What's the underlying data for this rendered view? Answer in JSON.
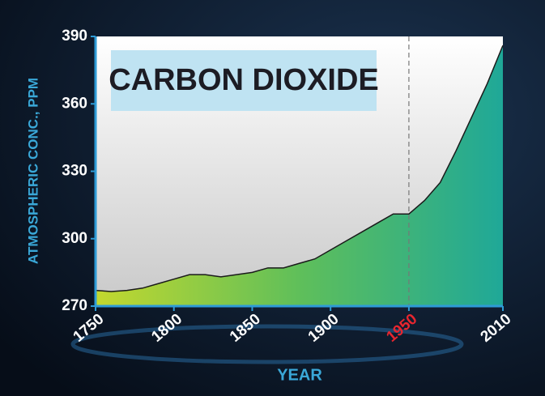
{
  "chart_data": {
    "type": "area",
    "title": "CARBON DIOXIDE",
    "y_label": "ATMOSPHERIC CONC., PPM",
    "x_label": "YEAR",
    "x": [
      1750,
      1760,
      1770,
      1780,
      1790,
      1800,
      1810,
      1820,
      1830,
      1840,
      1850,
      1860,
      1870,
      1880,
      1890,
      1900,
      1910,
      1920,
      1930,
      1940,
      1950,
      1960,
      1970,
      1980,
      1990,
      2000,
      2010
    ],
    "values": [
      277,
      276.5,
      277,
      278,
      280,
      282,
      284,
      284,
      283,
      284,
      285,
      287,
      287,
      289,
      291,
      295,
      299,
      303,
      307,
      311,
      311,
      317,
      325,
      339,
      354,
      369,
      386
    ],
    "xlim": [
      1750,
      2010
    ],
    "xticks": [
      1750,
      1800,
      1850,
      1900,
      1950,
      2010
    ],
    "ylim": [
      270,
      390
    ],
    "yticks": [
      270,
      300,
      330,
      360,
      390
    ],
    "reference_x": 1950,
    "highlight_color": "#e8262f",
    "fill_gradient": [
      "#c3d82e",
      "#5fbf5a",
      "#1fa898"
    ],
    "line_color": "#1a1a1a"
  }
}
